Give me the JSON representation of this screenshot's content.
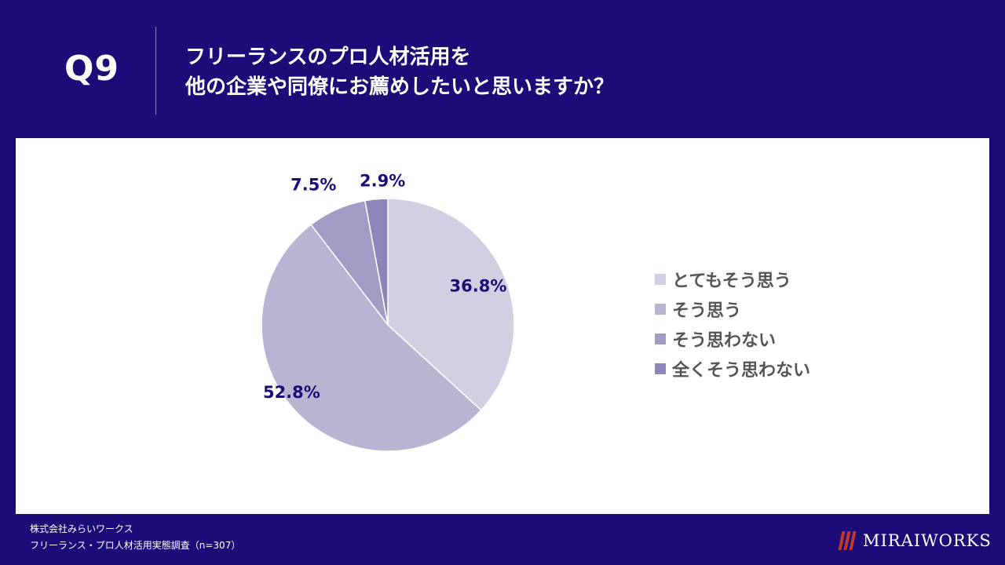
{
  "header": {
    "question_number": "Q9",
    "title_line1": "フリーランスのプロ人材活用を",
    "title_line2": "他の企業や同僚にお薦めしたいと思いますか？"
  },
  "chart_data": {
    "type": "pie",
    "title": "",
    "labels": [
      "とてもそう思う",
      "そう思う",
      "そう思わない",
      "全くそう思わない"
    ],
    "values": [
      36.8,
      52.8,
      7.5,
      2.9
    ],
    "value_labels": [
      "36.8%",
      "52.8%",
      "7.5%",
      "2.9%"
    ],
    "colors": [
      "#d2cfe3",
      "#b8b5d3",
      "#a29dc4",
      "#8d86b8"
    ],
    "start_angle": "12 o'clock",
    "direction": "clockwise",
    "legend_position": "right"
  },
  "footer": {
    "line1": "株式会社みらいワークス",
    "line2": "フリーランス・プロ人材活用実態調査（n=307）"
  },
  "logo": {
    "text": "MIRAIWORKS"
  },
  "theme": {
    "background": "#1b0c78",
    "label_color": "#1b0c78",
    "legend_text_color": "#555555"
  }
}
